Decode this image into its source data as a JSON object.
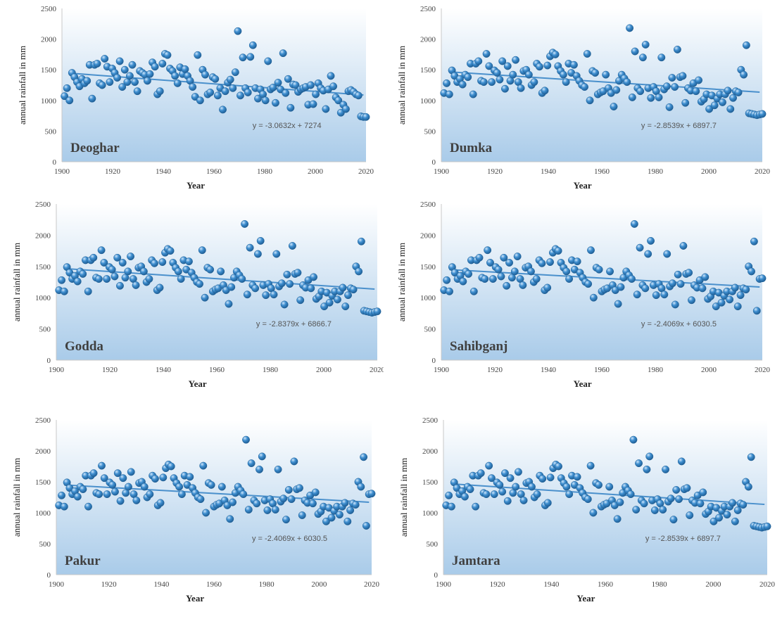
{
  "chart_data": [
    {
      "type": "scatter",
      "title": "Deoghar",
      "xlabel": "Year",
      "ylabel": "annual rainfall in mm",
      "xlim": [
        1900,
        2020
      ],
      "ylim": [
        0,
        2500
      ],
      "xticks": [
        1900,
        1920,
        1940,
        1960,
        1980,
        2000,
        2020
      ],
      "yticks": [
        0,
        500,
        1000,
        1500,
        2000,
        2500
      ],
      "trendline": {
        "label": "y = -3.0632x + 7274",
        "slope": -3.0632,
        "intercept": 7274
      },
      "y": [
        1070,
        1200,
        1000,
        1450,
        1380,
        1300,
        1230,
        1350,
        1280,
        1320,
        1580,
        1030,
        1580,
        1600,
        1280,
        1250,
        1680,
        1550,
        1300,
        1520,
        1450,
        1370,
        1640,
        1220,
        1500,
        1300,
        1400,
        1580,
        1300,
        1150,
        1480,
        1450,
        1420,
        1320,
        1430,
        1620,
        1550,
        1100,
        1150,
        1600,
        1760,
        1740,
        1520,
        1480,
        1400,
        1280,
        1540,
        1430,
        1510,
        1400,
        1320,
        1220,
        1060,
        1740,
        1000,
        1500,
        1420,
        1100,
        1130,
        1380,
        1350,
        1080,
        1200,
        850,
        1150,
        1290,
        1340,
        1200,
        1460,
        2130,
        1080,
        1700,
        1200,
        1130,
        1710,
        1900,
        1200,
        1030,
        1180,
        1100,
        1000,
        1640,
        1180,
        1210,
        960,
        1290,
        1180,
        1770,
        1120,
        1350,
        880,
        1260,
        1250,
        1140,
        1180,
        1200,
        1220,
        930,
        1250,
        940,
        1100,
        1280,
        1200,
        1160,
        860,
        1180,
        1400,
        1230,
        1050,
        1000,
        800,
        930,
        860,
        1150,
        1170,
        1140,
        1100,
        1080,
        740,
        730,
        730
      ]
    },
    {
      "type": "scatter",
      "title": "Dumka",
      "xlabel": "Year",
      "ylabel": "annual rainfall in mm",
      "xlim": [
        1900,
        2020
      ],
      "ylim": [
        0,
        2500
      ],
      "xticks": [
        1900,
        1920,
        1940,
        1960,
        1980,
        2000,
        2020
      ],
      "yticks": [
        0,
        500,
        1000,
        1500,
        2000,
        2500
      ],
      "trendline": {
        "label": "y = -2.8539x + 6897.7",
        "slope": -2.8539,
        "intercept": 6897.7
      },
      "y": [
        1120,
        1280,
        1100,
        1490,
        1400,
        1300,
        1350,
        1260,
        1420,
        1380,
        1600,
        1100,
        1600,
        1640,
        1320,
        1300,
        1760,
        1560,
        1300,
        1490,
        1450,
        1340,
        1640,
        1190,
        1560,
        1320,
        1420,
        1660,
        1300,
        1200,
        1480,
        1500,
        1420,
        1250,
        1300,
        1600,
        1550,
        1120,
        1160,
        1570,
        1720,
        1780,
        1750,
        1560,
        1480,
        1420,
        1300,
        1600,
        1450,
        1580,
        1400,
        1320,
        1250,
        1220,
        1760,
        1000,
        1480,
        1450,
        1100,
        1130,
        1150,
        1420,
        1200,
        1120,
        900,
        1170,
        1320,
        1420,
        1360,
        1300,
        2180,
        1050,
        1800,
        1200,
        1150,
        1700,
        1910,
        1200,
        1040,
        1220,
        1150,
        1050,
        1700,
        1180,
        1230,
        890,
        1370,
        1220,
        1830,
        1380,
        1400,
        960,
        1200,
        1160,
        1280,
        1150,
        1330,
        980,
        1020,
        1100,
        860,
        1080,
        920,
        1030,
        1100,
        970,
        1100,
        1160,
        860,
        1040,
        1150,
        1130,
        1500,
        1420,
        1900,
        790,
        780,
        770,
        760,
        770,
        780
      ]
    },
    {
      "type": "scatter",
      "title": "Godda",
      "xlabel": "Year",
      "ylabel": "annual rainfall in mm",
      "xlim": [
        1900,
        2020
      ],
      "ylim": [
        0,
        2500
      ],
      "xticks": [
        1900,
        1920,
        1940,
        1960,
        1980,
        2000,
        2020
      ],
      "yticks": [
        0,
        500,
        1000,
        1500,
        2000,
        2500
      ],
      "trendline": {
        "label": "y = -2.8379x + 6866.7",
        "slope": -2.8379,
        "intercept": 6866.7
      },
      "y": [
        1120,
        1280,
        1100,
        1490,
        1400,
        1300,
        1350,
        1260,
        1420,
        1380,
        1600,
        1100,
        1600,
        1640,
        1320,
        1300,
        1760,
        1560,
        1300,
        1490,
        1450,
        1340,
        1640,
        1190,
        1560,
        1320,
        1420,
        1660,
        1300,
        1200,
        1480,
        1500,
        1420,
        1250,
        1300,
        1600,
        1550,
        1120,
        1160,
        1570,
        1720,
        1780,
        1750,
        1560,
        1480,
        1420,
        1300,
        1600,
        1450,
        1580,
        1400,
        1320,
        1250,
        1220,
        1760,
        1000,
        1480,
        1450,
        1100,
        1130,
        1150,
        1420,
        1200,
        1120,
        900,
        1170,
        1320,
        1420,
        1360,
        1300,
        2180,
        1050,
        1800,
        1200,
        1150,
        1700,
        1910,
        1200,
        1040,
        1220,
        1150,
        1050,
        1700,
        1180,
        1230,
        890,
        1370,
        1220,
        1830,
        1380,
        1400,
        960,
        1200,
        1160,
        1280,
        1150,
        1330,
        980,
        1020,
        1100,
        860,
        1080,
        920,
        1030,
        1100,
        970,
        1100,
        1160,
        860,
        1040,
        1150,
        1130,
        1500,
        1420,
        1900,
        790,
        780,
        770,
        760,
        770,
        780
      ]
    },
    {
      "type": "scatter",
      "title": "Sahibganj",
      "xlabel": "Year",
      "ylabel": "annual rainfall in mm",
      "xlim": [
        1900,
        2020
      ],
      "ylim": [
        0,
        2500
      ],
      "xticks": [
        1900,
        1920,
        1940,
        1960,
        1980,
        2000,
        2020
      ],
      "yticks": [
        0,
        500,
        1000,
        1500,
        2000,
        2500
      ],
      "trendline": {
        "label": "y = -2.4069x + 6030.5",
        "slope": -2.4069,
        "intercept": 6030.5
      },
      "y": [
        1120,
        1280,
        1100,
        1490,
        1400,
        1300,
        1350,
        1260,
        1420,
        1380,
        1600,
        1100,
        1600,
        1640,
        1320,
        1300,
        1760,
        1560,
        1300,
        1490,
        1450,
        1340,
        1640,
        1190,
        1560,
        1320,
        1420,
        1660,
        1300,
        1200,
        1480,
        1500,
        1420,
        1250,
        1300,
        1600,
        1550,
        1120,
        1160,
        1570,
        1720,
        1780,
        1750,
        1560,
        1480,
        1420,
        1300,
        1600,
        1450,
        1580,
        1400,
        1320,
        1250,
        1220,
        1760,
        1000,
        1480,
        1450,
        1100,
        1130,
        1150,
        1420,
        1200,
        1120,
        900,
        1170,
        1320,
        1420,
        1360,
        1300,
        2180,
        1050,
        1800,
        1200,
        1150,
        1700,
        1910,
        1200,
        1040,
        1220,
        1150,
        1050,
        1700,
        1180,
        1230,
        890,
        1370,
        1220,
        1830,
        1380,
        1400,
        960,
        1200,
        1160,
        1280,
        1150,
        1330,
        980,
        1020,
        1100,
        860,
        1080,
        920,
        1030,
        1100,
        970,
        1100,
        1160,
        860,
        1040,
        1150,
        1130,
        1500,
        1420,
        1900,
        790,
        1300,
        1310
      ]
    },
    {
      "type": "scatter",
      "title": "Pakur",
      "xlabel": "Year",
      "ylabel": "annual rainfall in mm",
      "xlim": [
        1900,
        2020
      ],
      "ylim": [
        0,
        2500
      ],
      "xticks": [
        1900,
        1920,
        1940,
        1960,
        1980,
        2000,
        2020
      ],
      "yticks": [
        0,
        500,
        1000,
        1500,
        2000,
        2500
      ],
      "trendline": {
        "label": "y = -2.4069x + 6030.5",
        "slope": -2.4069,
        "intercept": 6030.5
      },
      "y": [
        1120,
        1280,
        1100,
        1490,
        1400,
        1300,
        1350,
        1260,
        1420,
        1380,
        1600,
        1100,
        1600,
        1640,
        1320,
        1300,
        1760,
        1560,
        1300,
        1490,
        1450,
        1340,
        1640,
        1190,
        1560,
        1320,
        1420,
        1660,
        1300,
        1200,
        1480,
        1500,
        1420,
        1250,
        1300,
        1600,
        1550,
        1120,
        1160,
        1570,
        1720,
        1780,
        1750,
        1560,
        1480,
        1420,
        1300,
        1600,
        1450,
        1580,
        1400,
        1320,
        1250,
        1220,
        1760,
        1000,
        1480,
        1450,
        1100,
        1130,
        1150,
        1420,
        1200,
        1120,
        900,
        1170,
        1320,
        1420,
        1360,
        1300,
        2180,
        1050,
        1800,
        1200,
        1150,
        1700,
        1910,
        1200,
        1040,
        1220,
        1150,
        1050,
        1700,
        1180,
        1230,
        890,
        1370,
        1220,
        1830,
        1380,
        1400,
        960,
        1200,
        1160,
        1280,
        1150,
        1330,
        980,
        1020,
        1100,
        860,
        1080,
        920,
        1030,
        1100,
        970,
        1100,
        1160,
        860,
        1040,
        1150,
        1130,
        1500,
        1420,
        1900,
        790,
        1300,
        1310
      ]
    },
    {
      "type": "scatter",
      "title": "Jamtara",
      "xlabel": "Year",
      "ylabel": "annual rainfall in mm",
      "xlim": [
        1900,
        2020
      ],
      "ylim": [
        0,
        2500
      ],
      "xticks": [
        1900,
        1920,
        1940,
        1960,
        1980,
        2000,
        2020
      ],
      "yticks": [
        0,
        500,
        1000,
        1500,
        2000,
        2500
      ],
      "trendline": {
        "label": "y = -2.8539x + 6897.7",
        "slope": -2.8539,
        "intercept": 6897.7
      },
      "y": [
        1120,
        1280,
        1100,
        1490,
        1400,
        1300,
        1350,
        1260,
        1420,
        1380,
        1600,
        1100,
        1600,
        1640,
        1320,
        1300,
        1760,
        1560,
        1300,
        1490,
        1450,
        1340,
        1640,
        1190,
        1560,
        1320,
        1420,
        1660,
        1300,
        1200,
        1480,
        1500,
        1420,
        1250,
        1300,
        1600,
        1550,
        1120,
        1160,
        1570,
        1720,
        1780,
        1750,
        1560,
        1480,
        1420,
        1300,
        1600,
        1450,
        1580,
        1400,
        1320,
        1250,
        1220,
        1760,
        1000,
        1480,
        1450,
        1100,
        1130,
        1150,
        1420,
        1200,
        1120,
        900,
        1170,
        1320,
        1420,
        1360,
        1300,
        2180,
        1050,
        1800,
        1200,
        1150,
        1700,
        1910,
        1200,
        1040,
        1220,
        1150,
        1050,
        1700,
        1180,
        1230,
        890,
        1370,
        1220,
        1830,
        1380,
        1400,
        960,
        1200,
        1160,
        1280,
        1150,
        1330,
        980,
        1020,
        1100,
        860,
        1080,
        920,
        1030,
        1100,
        970,
        1100,
        1160,
        860,
        1040,
        1150,
        1130,
        1500,
        1420,
        1900,
        790,
        780,
        770,
        760,
        770,
        780
      ]
    }
  ],
  "colors": {
    "plot_bg_top": "#ffffff",
    "plot_bg_bottom": "#a9cbe9",
    "point_fill": "#3f8fd0",
    "point_edge": "#1f5f96",
    "trendline": "#4a90cc"
  }
}
